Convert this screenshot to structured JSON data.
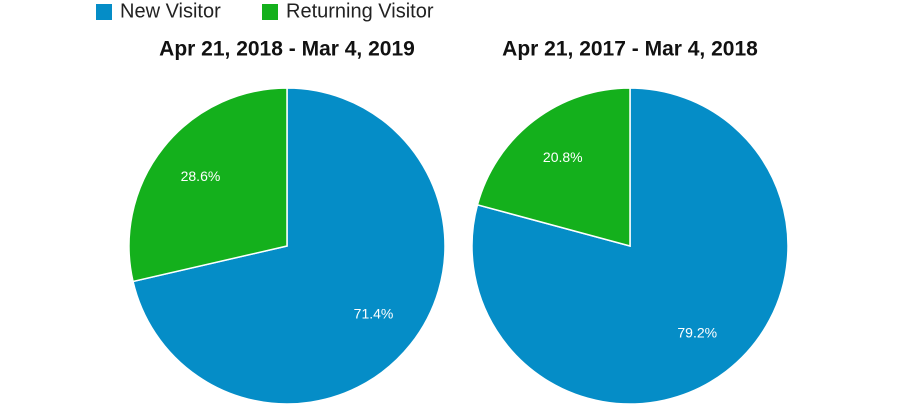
{
  "chart_data": [
    {
      "type": "pie",
      "title": "Apr 21, 2018 - Mar 4, 2019",
      "categories": [
        "New Visitor",
        "Returning Visitor"
      ],
      "colors": [
        "#058dc7",
        "#14b01c"
      ],
      "values": [
        71.4,
        28.6
      ],
      "value_labels": [
        "71.4%",
        "28.6%"
      ]
    },
    {
      "type": "pie",
      "title": "Apr 21, 2017 - Mar 4, 2018",
      "categories": [
        "New Visitor",
        "Returning Visitor"
      ],
      "colors": [
        "#058dc7",
        "#14b01c"
      ],
      "values": [
        79.2,
        20.8
      ],
      "value_labels": [
        "79.2%",
        "20.8%"
      ]
    }
  ]
}
